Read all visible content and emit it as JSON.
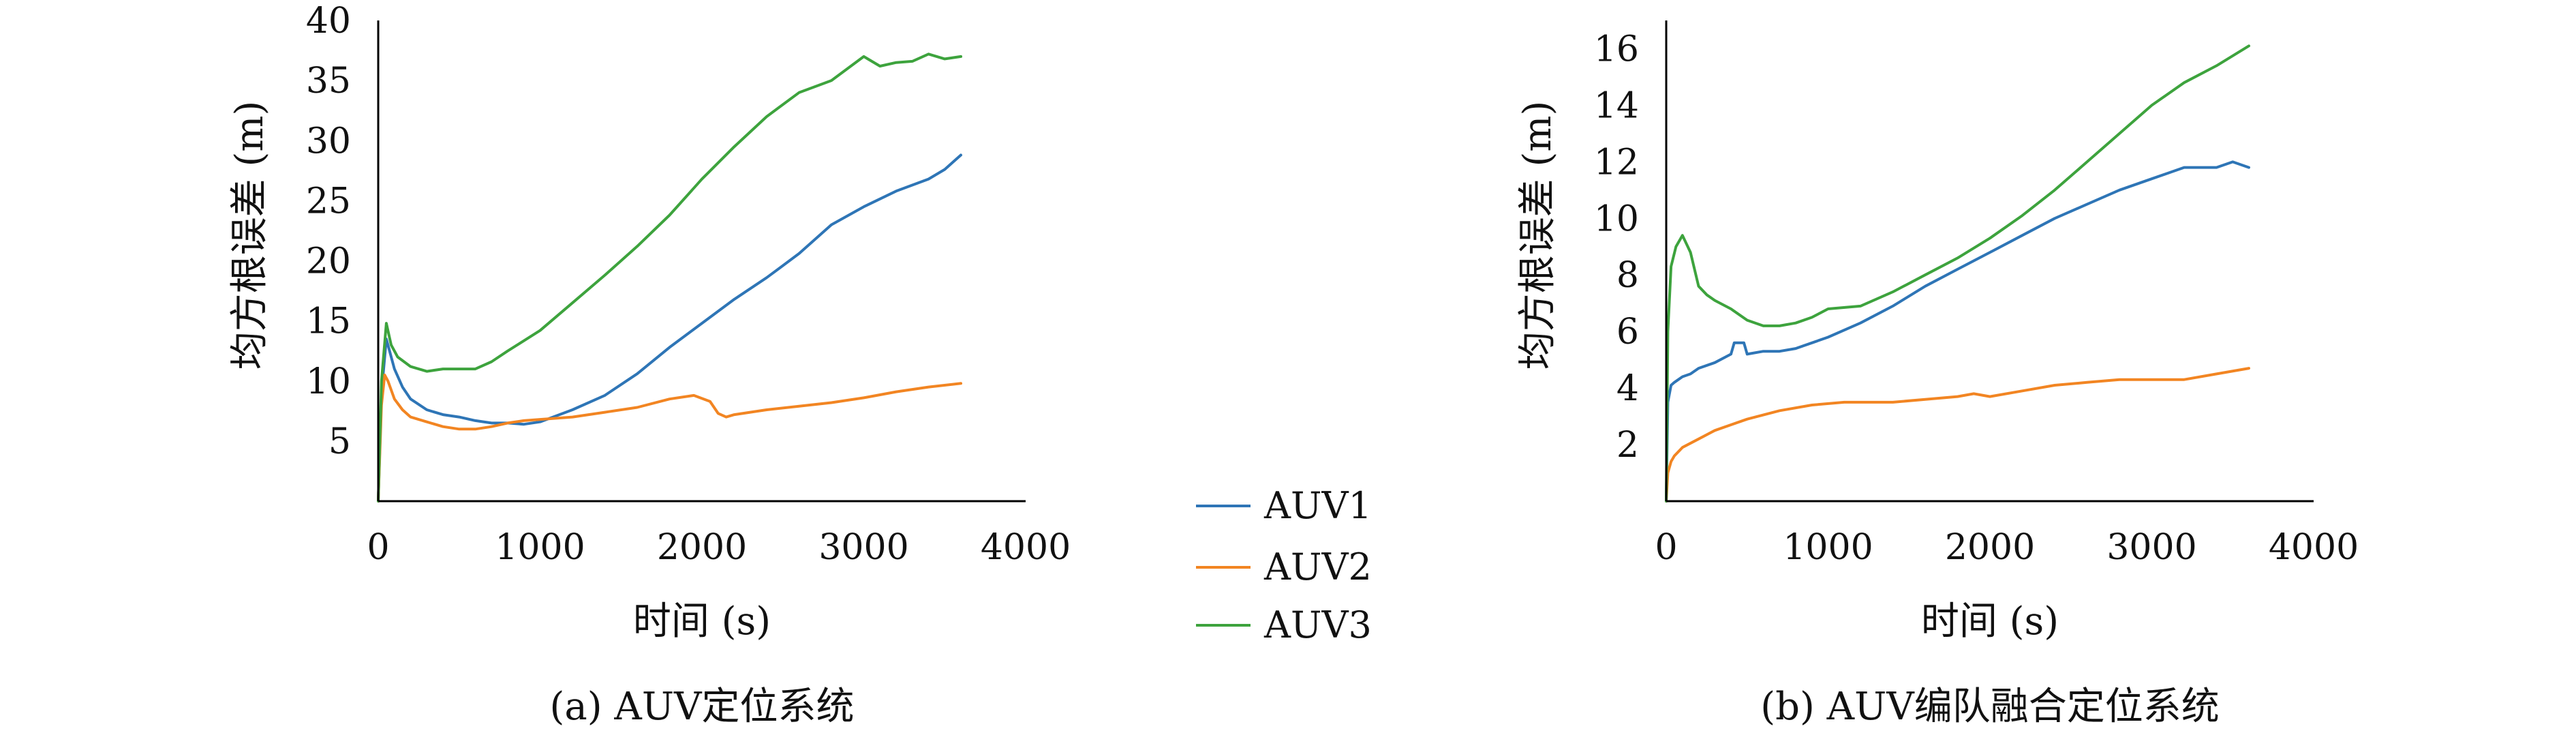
{
  "colors": {
    "AUV1": "#2E75B6",
    "AUV2": "#F28522",
    "AUV3": "#3DA33D"
  },
  "legend": {
    "entries": [
      "AUV1",
      "AUV2",
      "AUV3"
    ]
  },
  "chart_data": [
    {
      "type": "line",
      "caption": "(a) AUV定位系统",
      "xlabel": "时间 (s)",
      "ylabel": "均方根误差 (m)",
      "xlim": [
        0,
        4000
      ],
      "ylim": [
        0,
        40
      ],
      "xticks": [
        0,
        1000,
        2000,
        3000,
        4000
      ],
      "yticks": [
        5,
        10,
        15,
        20,
        25,
        30,
        35,
        40
      ],
      "grid": false,
      "series": [
        {
          "name": "AUV1",
          "x": [
            0,
            20,
            50,
            100,
            150,
            200,
            300,
            400,
            500,
            600,
            700,
            800,
            900,
            1000,
            1200,
            1400,
            1600,
            1800,
            2000,
            2200,
            2400,
            2600,
            2800,
            3000,
            3200,
            3400,
            3500,
            3600
          ],
          "y": [
            0,
            9,
            13.5,
            11,
            9.5,
            8.5,
            7.6,
            7.2,
            7.0,
            6.7,
            6.5,
            6.5,
            6.4,
            6.6,
            7.6,
            8.8,
            10.6,
            12.8,
            14.8,
            16.8,
            18.6,
            20.6,
            23.0,
            24.5,
            25.8,
            26.8,
            27.6,
            28.8
          ]
        },
        {
          "name": "AUV2",
          "x": [
            0,
            20,
            40,
            60,
            100,
            150,
            200,
            300,
            400,
            500,
            600,
            700,
            800,
            900,
            1000,
            1200,
            1400,
            1600,
            1800,
            1950,
            2050,
            2100,
            2150,
            2200,
            2400,
            2600,
            2800,
            3000,
            3200,
            3400,
            3600
          ],
          "y": [
            0,
            8,
            10.5,
            10,
            8.5,
            7.6,
            7.0,
            6.6,
            6.2,
            6.0,
            6.0,
            6.2,
            6.5,
            6.7,
            6.8,
            7.0,
            7.4,
            7.8,
            8.5,
            8.8,
            8.3,
            7.3,
            7.0,
            7.2,
            7.6,
            7.9,
            8.2,
            8.6,
            9.1,
            9.5,
            9.8
          ]
        },
        {
          "name": "AUV3",
          "x": [
            0,
            20,
            50,
            80,
            120,
            200,
            300,
            400,
            500,
            600,
            700,
            800,
            1000,
            1200,
            1400,
            1600,
            1800,
            2000,
            2200,
            2400,
            2600,
            2800,
            3000,
            3100,
            3200,
            3300,
            3400,
            3500,
            3600
          ],
          "y": [
            0,
            10,
            14.8,
            13,
            12,
            11.2,
            10.8,
            11.0,
            11.0,
            11.0,
            11.6,
            12.5,
            14.2,
            16.5,
            18.8,
            21.2,
            23.8,
            26.8,
            29.5,
            32.0,
            34.0,
            35.0,
            37.0,
            36.2,
            36.5,
            36.6,
            37.2,
            36.8,
            37.0
          ]
        }
      ]
    },
    {
      "type": "line",
      "caption": "(b) AUV编队融合定位系统",
      "xlabel": "时间 (s)",
      "ylabel": "均方根误差 (m)",
      "xlim": [
        0,
        4000
      ],
      "ylim": [
        0,
        17
      ],
      "xticks": [
        0,
        1000,
        2000,
        3000,
        4000
      ],
      "yticks": [
        2,
        4,
        6,
        8,
        10,
        12,
        14,
        16
      ],
      "grid": false,
      "series": [
        {
          "name": "AUV1",
          "x": [
            0,
            10,
            30,
            50,
            100,
            150,
            200,
            300,
            400,
            420,
            480,
            500,
            600,
            700,
            800,
            900,
            1000,
            1200,
            1400,
            1600,
            1800,
            2000,
            2200,
            2400,
            2600,
            2800,
            3000,
            3200,
            3400,
            3500,
            3600
          ],
          "y": [
            0,
            3.5,
            4.1,
            4.2,
            4.4,
            4.5,
            4.7,
            4.9,
            5.2,
            5.6,
            5.6,
            5.2,
            5.3,
            5.3,
            5.4,
            5.6,
            5.8,
            6.3,
            6.9,
            7.6,
            8.2,
            8.8,
            9.4,
            10.0,
            10.5,
            11.0,
            11.4,
            11.8,
            11.8,
            12.0,
            11.8
          ]
        },
        {
          "name": "AUV2",
          "x": [
            0,
            10,
            30,
            50,
            100,
            200,
            300,
            400,
            500,
            700,
            900,
            1100,
            1400,
            1600,
            1800,
            1900,
            2000,
            2200,
            2400,
            2600,
            2800,
            3000,
            3200,
            3400,
            3600
          ],
          "y": [
            0,
            1.0,
            1.4,
            1.6,
            1.9,
            2.2,
            2.5,
            2.7,
            2.9,
            3.2,
            3.4,
            3.5,
            3.5,
            3.6,
            3.7,
            3.8,
            3.7,
            3.9,
            4.1,
            4.2,
            4.3,
            4.3,
            4.3,
            4.5,
            4.7
          ]
        },
        {
          "name": "AUV3",
          "x": [
            0,
            10,
            30,
            60,
            100,
            150,
            200,
            250,
            300,
            400,
            500,
            600,
            700,
            800,
            900,
            1000,
            1200,
            1400,
            1600,
            1800,
            2000,
            2200,
            2400,
            2600,
            2800,
            3000,
            3200,
            3400,
            3600
          ],
          "y": [
            0,
            6.0,
            8.3,
            9.0,
            9.4,
            8.8,
            7.6,
            7.3,
            7.1,
            6.8,
            6.4,
            6.2,
            6.2,
            6.3,
            6.5,
            6.8,
            6.9,
            7.4,
            8.0,
            8.6,
            9.3,
            10.1,
            11.0,
            12.0,
            13.0,
            14.0,
            14.8,
            15.4,
            16.1
          ]
        }
      ]
    }
  ]
}
